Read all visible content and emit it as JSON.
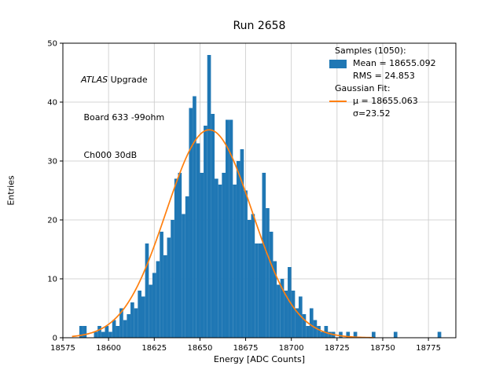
{
  "title": "Run 2658",
  "xlabel": "Energy [ADC Counts]",
  "ylabel": "Entries",
  "annotation": {
    "atlas": "ATLAS",
    "line1_rest": " Upgrade",
    "line2": " Board 633 -99ohm",
    "line3": " Ch000 30dB"
  },
  "legend": {
    "samples_header": "Samples (1050):",
    "mean": "Mean = 18655.092",
    "rms": "RMS = 24.853",
    "gauss_header": "Gaussian Fit:",
    "mu": "μ = 18655.063",
    "sigma": "σ=23.52"
  },
  "chart_data": {
    "type": "bar",
    "subtype": "histogram",
    "title": "Run 2658",
    "xlabel": "Energy [ADC Counts]",
    "ylabel": "Entries",
    "xlim": [
      18575,
      18790
    ],
    "ylim": [
      0,
      50
    ],
    "xticks": [
      18575,
      18600,
      18625,
      18650,
      18675,
      18700,
      18725,
      18750,
      18775
    ],
    "yticks": [
      0,
      10,
      20,
      30,
      40,
      50
    ],
    "grid": true,
    "hist_color": "#1f77b4",
    "fit_color": "#ff7f0e",
    "n_samples": 1050,
    "mean": 18655.092,
    "rms": 24.853,
    "bin_start": 18584,
    "bin_width": 2,
    "counts": [
      2,
      2,
      0,
      0,
      1,
      2,
      1,
      2,
      1,
      3,
      2,
      5,
      3,
      4,
      6,
      5,
      8,
      7,
      16,
      9,
      11,
      13,
      18,
      14,
      17,
      20,
      27,
      28,
      21,
      24,
      39,
      41,
      33,
      28,
      36,
      48,
      38,
      27,
      26,
      28,
      37,
      37,
      26,
      30,
      32,
      25,
      20,
      21,
      16,
      16,
      28,
      22,
      18,
      13,
      9,
      10,
      8,
      12,
      8,
      5,
      7,
      4,
      2,
      5,
      3,
      2,
      1,
      2,
      1,
      1,
      0,
      1,
      0,
      1,
      0,
      1,
      0,
      0,
      0,
      0,
      1,
      0,
      0,
      0,
      0,
      0,
      1,
      0,
      0,
      0,
      0,
      0,
      0,
      0,
      0,
      0,
      0,
      0,
      1,
      0
    ],
    "gaussian_fit": {
      "mu": 18655.063,
      "sigma": 23.52,
      "amplitude": 35.3,
      "x_min": 18580,
      "x_max": 18745
    }
  }
}
